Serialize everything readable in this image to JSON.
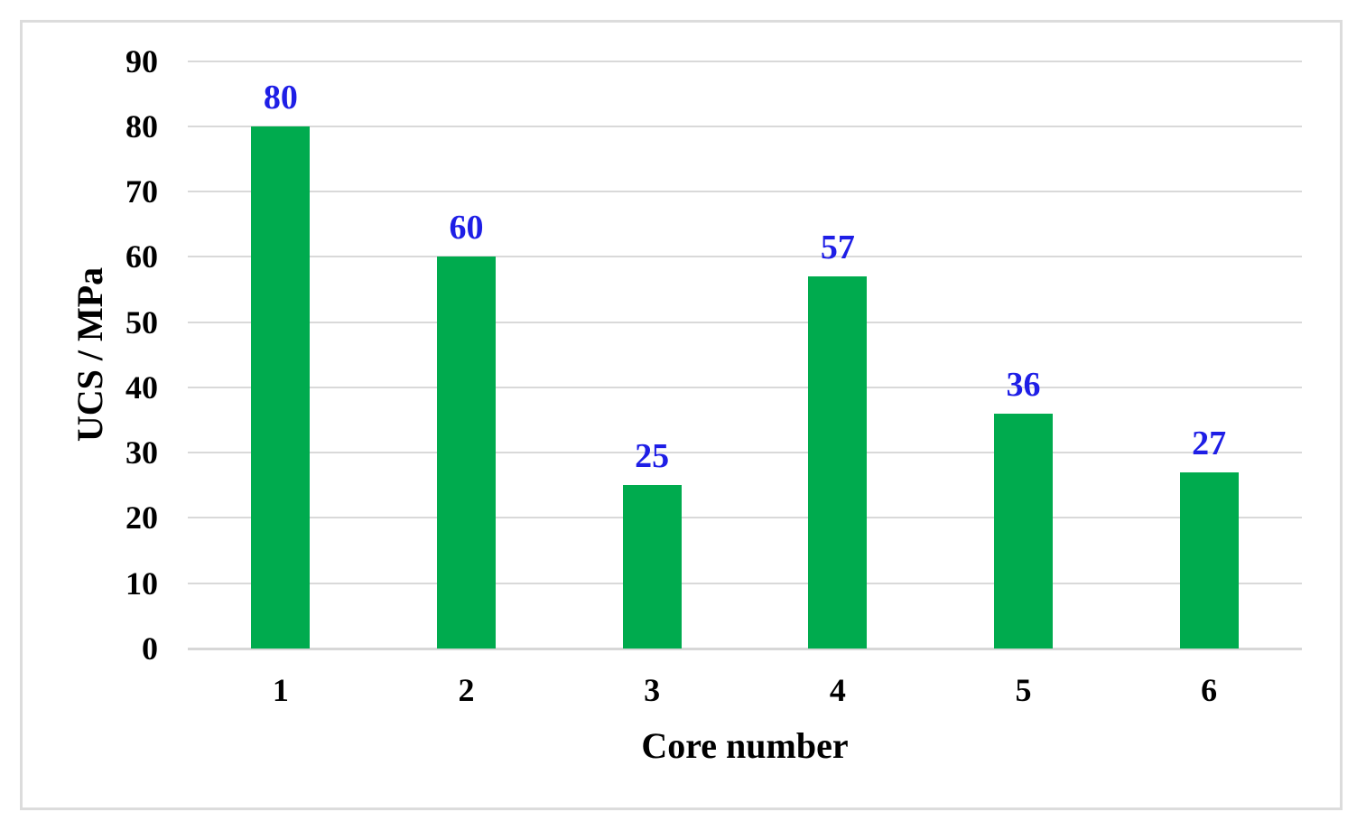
{
  "chart_data": {
    "type": "bar",
    "title": "",
    "categories": [
      "1",
      "2",
      "3",
      "4",
      "5",
      "6"
    ],
    "values": [
      80,
      60,
      25,
      57,
      36,
      27
    ],
    "data_labels": [
      "80",
      "60",
      "25",
      "57",
      "36",
      "27"
    ],
    "xlabel": "Core number",
    "ylabel": "UCS / MPa",
    "ylim": [
      0,
      90
    ],
    "ytick_step": 10,
    "yticks": [
      "0",
      "10",
      "20",
      "30",
      "40",
      "50",
      "60",
      "70",
      "80",
      "90"
    ],
    "grid": "horizontal",
    "legend_position": "none",
    "colors": {
      "bar_fill": "#00ab4e",
      "data_label_text": "#1e1ee6",
      "axis_text": "#000000",
      "gridline": "#d9d9d9",
      "frame_border": "#dcdcdc",
      "background": "#ffffff"
    }
  }
}
